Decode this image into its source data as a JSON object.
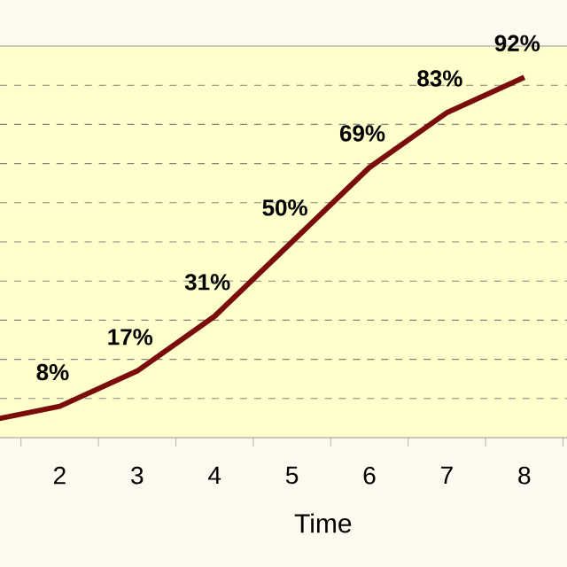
{
  "chart_data": {
    "type": "line",
    "xlabel": "Time",
    "categories": [
      null,
      "2",
      "3",
      "4",
      "5",
      "6",
      "7",
      "8"
    ],
    "series": [
      {
        "color": "#7b0c0c",
        "values": [
          4,
          8,
          17,
          31,
          50,
          69,
          83,
          92
        ],
        "value_labels": [
          null,
          "8%",
          "17%",
          "31%",
          "50%",
          "69%",
          "83%",
          "92%"
        ]
      }
    ],
    "ylim": [
      0,
      100
    ],
    "yticks": [
      {
        "value": 10,
        "label": null
      },
      {
        "value": 20,
        "label": null
      },
      {
        "value": 30,
        "label": null
      },
      {
        "value": 40,
        "label": null
      },
      {
        "value": 50,
        "label": null
      },
      {
        "value": 60,
        "label": null
      },
      {
        "value": 70,
        "label": null
      },
      {
        "value": 80,
        "label": null
      },
      {
        "value": 90,
        "label": null
      }
    ],
    "tick_labels": "x",
    "grid": "y",
    "marker": "none",
    "line_style": "solid"
  }
}
